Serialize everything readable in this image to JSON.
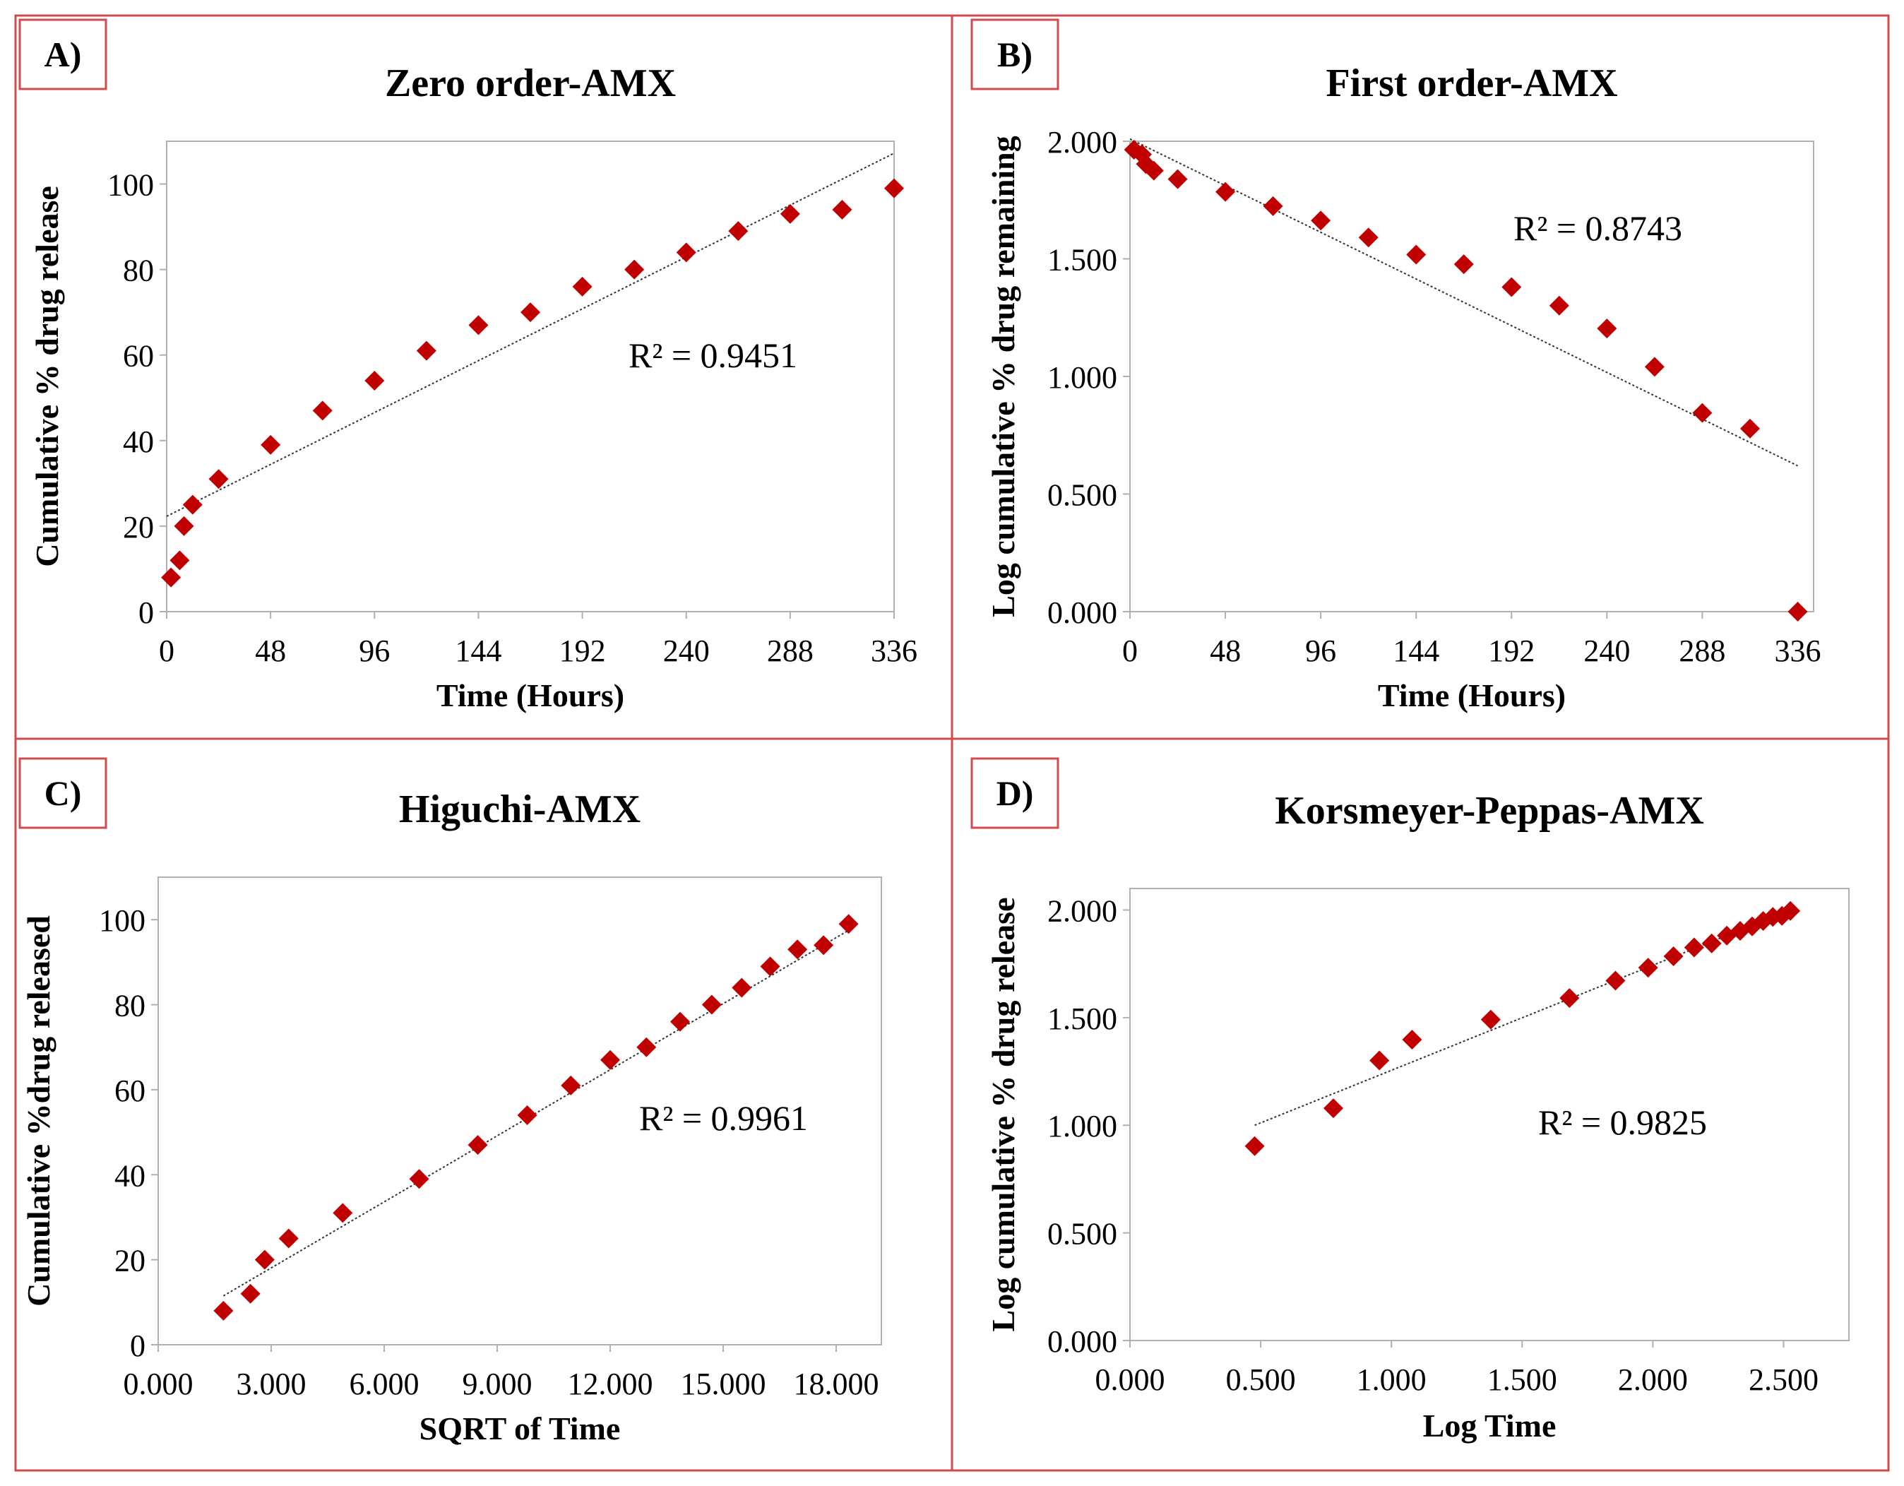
{
  "colors": {
    "border": "#d24a4a",
    "marker": "#c00000",
    "trend": "#333333",
    "axis": "#bfbfbf",
    "frame": "#b0b0b0"
  },
  "chart_data": [
    {
      "type": "scatter",
      "panel_label": "A)",
      "title": "Zero order-AMX",
      "xlabel": "Time (Hours)",
      "ylabel": "Cumulative % drug release",
      "xlim": [
        0,
        336
      ],
      "ylim": [
        0,
        110
      ],
      "xticks": [
        0,
        48,
        96,
        144,
        192,
        240,
        288,
        336
      ],
      "yticks": [
        0,
        20,
        40,
        60,
        80,
        100
      ],
      "tick_decimals_x": 0,
      "tick_decimals_y": 0,
      "r_squared": "R² = 0.9451",
      "series": [
        {
          "name": "AMX",
          "x": [
            2,
            6,
            8,
            12,
            24,
            48,
            72,
            96,
            120,
            144,
            168,
            192,
            216,
            240,
            264,
            288,
            312,
            336
          ],
          "y": [
            8,
            12,
            20,
            25,
            31,
            39,
            47,
            54,
            61,
            67,
            70,
            76,
            80,
            84,
            89,
            93,
            94,
            99
          ]
        }
      ],
      "trendline": {
        "x": [
          0,
          336
        ],
        "y": [
          22.3,
          107.2
        ]
      }
    },
    {
      "type": "scatter",
      "panel_label": "B)",
      "title": "First order-AMX",
      "xlabel": "Time (Hours)",
      "ylabel": "Log cumulative % drug remaining",
      "xlim": [
        0,
        344
      ],
      "ylim": [
        0,
        2
      ],
      "xticks": [
        0,
        48,
        96,
        144,
        192,
        240,
        288,
        336
      ],
      "yticks": [
        0,
        0.5,
        1,
        1.5,
        2
      ],
      "tick_decimals_x": 0,
      "tick_decimals_y": 3,
      "r_squared": "R² = 0.8743",
      "series": [
        {
          "name": "AMX",
          "x": [
            2,
            6,
            8,
            12,
            24,
            48,
            72,
            96,
            120,
            144,
            168,
            192,
            216,
            240,
            264,
            288,
            312,
            336
          ],
          "y": [
            1.964,
            1.944,
            1.903,
            1.875,
            1.839,
            1.785,
            1.724,
            1.663,
            1.591,
            1.518,
            1.477,
            1.38,
            1.301,
            1.204,
            1.041,
            0.845,
            0.778,
            0.0
          ]
        }
      ],
      "trendline": {
        "x": [
          0,
          336
        ],
        "y": [
          2.01,
          0.62
        ]
      }
    },
    {
      "type": "scatter",
      "panel_label": "C)",
      "title": "Higuchi-AMX",
      "xlabel": "SQRT of Time",
      "ylabel": "Cumulative %drug released",
      "xlim": [
        0,
        19.2
      ],
      "ylim": [
        0,
        110
      ],
      "xticks": [
        0,
        3,
        6,
        9,
        12,
        15,
        18
      ],
      "yticks": [
        0,
        20,
        40,
        60,
        80,
        100
      ],
      "tick_decimals_x": 3,
      "tick_decimals_y": 0,
      "r_squared": "R² = 0.9961",
      "series": [
        {
          "name": "AMX",
          "x": [
            1.732,
            2.449,
            2.828,
            3.464,
            4.899,
            6.928,
            8.485,
            9.798,
            10.954,
            12.0,
            12.961,
            13.856,
            14.697,
            15.492,
            16.248,
            16.971,
            17.664,
            18.33
          ],
          "y": [
            8,
            12,
            20,
            25,
            31,
            39,
            47,
            54,
            61,
            67,
            70,
            76,
            80,
            84,
            89,
            93,
            94,
            99
          ]
        }
      ],
      "trendline": {
        "x": [
          1.732,
          18.33
        ],
        "y": [
          11.5,
          97.5
        ]
      }
    },
    {
      "type": "scatter",
      "panel_label": "D)",
      "title": "Korsmeyer-Peppas-AMX",
      "xlabel": "Log Time",
      "ylabel": "Log cumulative % drug release",
      "xlim": [
        0,
        2.75
      ],
      "ylim": [
        0,
        2.1
      ],
      "xticks": [
        0,
        0.5,
        1,
        1.5,
        2,
        2.5
      ],
      "yticks": [
        0,
        0.5,
        1,
        1.5,
        2
      ],
      "tick_decimals_x": 3,
      "tick_decimals_y": 3,
      "r_squared": "R² = 0.9825",
      "series": [
        {
          "name": "AMX",
          "x": [
            0.477,
            0.778,
            0.954,
            1.079,
            1.38,
            1.681,
            1.857,
            1.982,
            2.079,
            2.158,
            2.225,
            2.283,
            2.334,
            2.38,
            2.422,
            2.459,
            2.494,
            2.526
          ],
          "y": [
            0.903,
            1.079,
            1.301,
            1.398,
            1.491,
            1.591,
            1.672,
            1.732,
            1.785,
            1.826,
            1.845,
            1.881,
            1.903,
            1.924,
            1.949,
            1.968,
            1.973,
            1.996
          ]
        }
      ],
      "trendline": {
        "x": [
          0.477,
          2.526
        ],
        "y": [
          1.0,
          2.0
        ]
      }
    }
  ]
}
